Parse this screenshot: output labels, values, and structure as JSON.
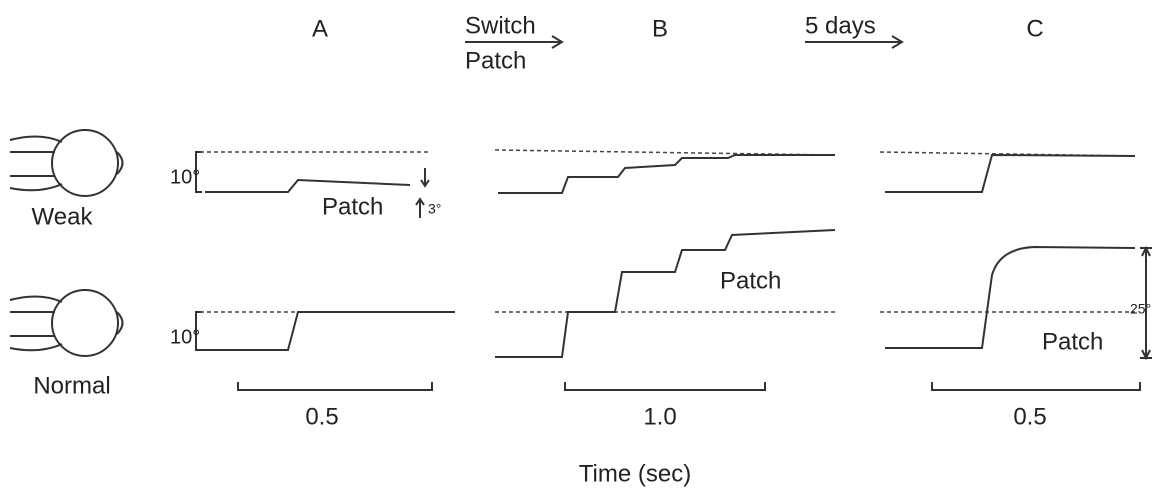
{
  "columns": [
    {
      "label": "A"
    },
    {
      "label": "B"
    },
    {
      "label": "C"
    }
  ],
  "transitions": [
    {
      "lines": [
        "Switch",
        "Patch"
      ]
    },
    {
      "lines": [
        "5 days"
      ]
    }
  ],
  "eyes": [
    {
      "label": "Weak"
    },
    {
      "label": "Normal"
    }
  ],
  "scale_labels": [
    "10°",
    "10°",
    "3°",
    "25°"
  ],
  "patch_labels": [
    "Patch",
    "Patch",
    "Patch"
  ],
  "time_scales": [
    "0.5",
    "1.0",
    "0.5"
  ],
  "x_axis_label": "Time (sec)"
}
